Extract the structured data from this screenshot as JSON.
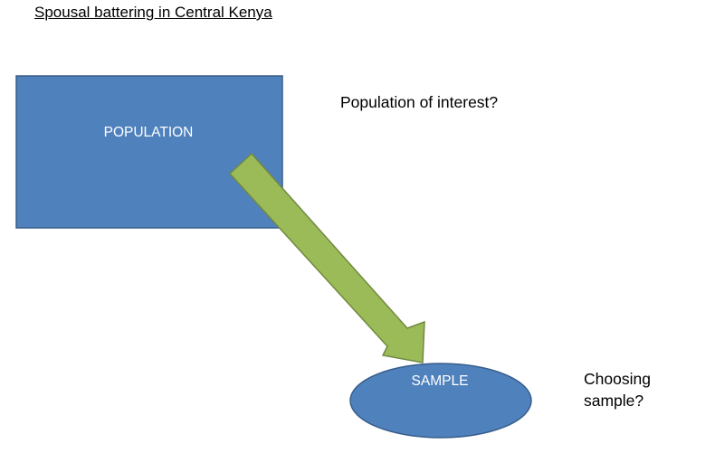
{
  "title": "Spousal battering in Central Kenya",
  "diagram": {
    "population_box": {
      "label": "POPULATION",
      "fill": "#4f81bd",
      "stroke": "#385d8a",
      "text_color": "#ffffff"
    },
    "arrow": {
      "fill": "#9bbb59",
      "stroke": "#71893f"
    },
    "sample_ellipse": {
      "label": "SAMPLE",
      "fill": "#4f81bd",
      "stroke": "#385d8a",
      "text_color": "#ffffff"
    }
  },
  "notes": {
    "population_question": "Population of interest?",
    "sample_question_line1": "Choosing",
    "sample_question_line2": "sample?"
  }
}
